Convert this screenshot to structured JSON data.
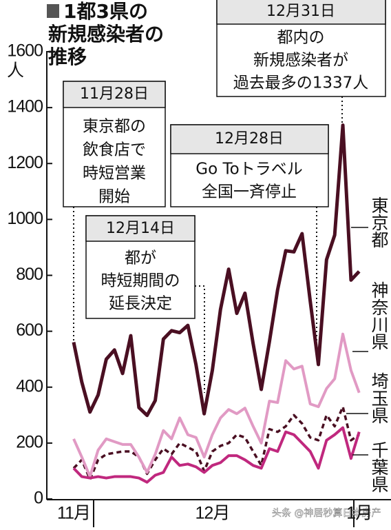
{
  "chart_data": {
    "type": "line",
    "title_lines": [
      "1都3県の",
      "新規感染者の",
      "推移"
    ],
    "y_unit": "人",
    "categories": [
      "11月",
      null,
      null,
      null,
      null,
      null,
      null,
      null,
      null,
      null,
      null,
      null,
      null,
      null,
      null,
      null,
      null,
      "12月",
      null,
      null,
      null,
      null,
      null,
      null,
      null,
      null,
      null,
      null,
      null,
      null,
      null,
      null,
      null,
      null,
      null,
      "1月"
    ],
    "ylim": [
      0,
      1600
    ],
    "yticks": [
      0,
      200,
      400,
      600,
      800,
      1000,
      1200,
      1400,
      1600
    ],
    "series": [
      {
        "name": "東京都",
        "color": "#4a0f22",
        "style": "solid",
        "values": [
          561,
          418,
          311,
          372,
          500,
          533,
          449,
          584,
          327,
          299,
          352,
          572,
          602,
          595,
          621,
          480,
          305,
          460,
          678,
          822,
          664,
          736,
          556,
          392,
          563,
          748,
          888,
          884,
          949,
          708,
          481,
          856,
          944,
          1337,
          783,
          814
        ]
      },
      {
        "name": "神奈川県",
        "color": "#e19ac4",
        "style": "solid",
        "values": [
          215,
          150,
          80,
          175,
          215,
          205,
          195,
          195,
          150,
          95,
          160,
          245,
          215,
          290,
          230,
          220,
          150,
          230,
          290,
          320,
          305,
          325,
          260,
          200,
          350,
          345,
          495,
          465,
          475,
          340,
          330,
          395,
          430,
          590,
          460,
          380
        ]
      },
      {
        "name": "埼玉県",
        "color": "#4a0f22",
        "style": "dashed",
        "values": [
          110,
          140,
          70,
          140,
          160,
          165,
          170,
          170,
          150,
          90,
          140,
          180,
          160,
          200,
          185,
          170,
          100,
          170,
          190,
          200,
          230,
          220,
          170,
          120,
          250,
          240,
          260,
          300,
          270,
          220,
          210,
          300,
          260,
          330,
          210,
          230
        ]
      },
      {
        "name": "千葉県",
        "color": "#c0287e",
        "style": "solid",
        "values": [
          110,
          80,
          75,
          80,
          75,
          80,
          80,
          80,
          75,
          60,
          85,
          95,
          150,
          120,
          125,
          115,
          95,
          120,
          130,
          155,
          155,
          140,
          120,
          110,
          180,
          170,
          240,
          230,
          200,
          170,
          110,
          210,
          230,
          255,
          145,
          240
        ]
      }
    ],
    "annotations": [
      {
        "date": "11月28日",
        "lines": [
          "東京都の",
          "飲食店で",
          "時短営業",
          "開始"
        ]
      },
      {
        "date": "12月14日",
        "lines": [
          "都が",
          "時短期間の",
          "延長決定"
        ]
      },
      {
        "date": "12月28日",
        "lines": [
          "Go Toトラベル",
          "全国一斉停止"
        ]
      },
      {
        "date": "12月31日",
        "lines": [
          "都内の",
          "新規感染者が",
          "過去最多の1337人"
        ]
      }
    ],
    "watermark": "头条 @神居秒算日本房产"
  }
}
